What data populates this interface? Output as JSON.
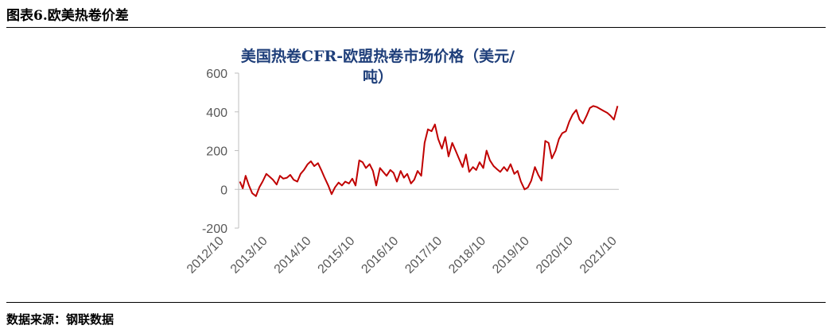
{
  "figure_title": "图表6.欧美热卷价差",
  "source": "数据来源：钢联数据",
  "chart_data": {
    "type": "line",
    "title_lines": [
      "美国热卷CFR-欧盟热卷市场价格（美元/",
      "吨）"
    ],
    "xlabel": "",
    "ylabel": "",
    "ylim": [
      -200,
      600
    ],
    "yticks": [
      "600",
      "400",
      "200",
      "0",
      "-200"
    ],
    "xticks": [
      "2012/10",
      "2013/10",
      "2014/10",
      "2015/10",
      "2016/10",
      "2017/10",
      "2018/10",
      "2019/10",
      "2020/10",
      "2021/10"
    ],
    "grid": false,
    "legend": "none",
    "series": [
      {
        "color": "#c00000",
        "x": [
          2012.78,
          2012.85,
          2012.92,
          2013.0,
          2013.08,
          2013.17,
          2013.25,
          2013.33,
          2013.42,
          2013.5,
          2013.58,
          2013.67,
          2013.75,
          2013.83,
          2013.92,
          2014.0,
          2014.08,
          2014.17,
          2014.25,
          2014.33,
          2014.42,
          2014.5,
          2014.58,
          2014.67,
          2014.75,
          2014.83,
          2014.92,
          2015.0,
          2015.08,
          2015.17,
          2015.25,
          2015.33,
          2015.42,
          2015.5,
          2015.58,
          2015.67,
          2015.75,
          2015.83,
          2015.92,
          2016.0,
          2016.08,
          2016.17,
          2016.25,
          2016.33,
          2016.42,
          2016.5,
          2016.58,
          2016.67,
          2016.75,
          2016.83,
          2016.92,
          2017.0,
          2017.08,
          2017.17,
          2017.25,
          2017.33,
          2017.42,
          2017.5,
          2017.58,
          2017.67,
          2017.75,
          2017.83,
          2017.92,
          2018.0,
          2018.08,
          2018.17,
          2018.25,
          2018.33,
          2018.42,
          2018.5,
          2018.58,
          2018.67,
          2018.75,
          2018.83,
          2018.92,
          2019.0,
          2019.08,
          2019.17,
          2019.25,
          2019.33,
          2019.42,
          2019.5,
          2019.58,
          2019.67,
          2019.75,
          2019.83,
          2019.92,
          2020.0,
          2020.08,
          2020.17,
          2020.25,
          2020.33,
          2020.42,
          2020.5,
          2020.58,
          2020.67,
          2020.75,
          2020.83,
          2020.92,
          2021.0,
          2021.08,
          2021.17,
          2021.25,
          2021.33,
          2021.42,
          2021.5,
          2021.58,
          2021.67,
          2021.75,
          2021.83,
          2021.92
        ],
        "values": [
          40,
          5,
          70,
          20,
          -20,
          -35,
          10,
          40,
          80,
          65,
          50,
          25,
          70,
          55,
          60,
          75,
          50,
          40,
          80,
          100,
          130,
          145,
          120,
          135,
          100,
          60,
          20,
          -25,
          10,
          35,
          20,
          40,
          30,
          55,
          20,
          150,
          140,
          110,
          130,
          95,
          20,
          110,
          90,
          70,
          100,
          85,
          40,
          95,
          60,
          80,
          30,
          50,
          95,
          70,
          240,
          310,
          300,
          335,
          260,
          210,
          270,
          170,
          240,
          200,
          160,
          115,
          180,
          90,
          115,
          100,
          140,
          110,
          200,
          150,
          120,
          105,
          90,
          115,
          95,
          130,
          80,
          95,
          40,
          0,
          10,
          45,
          115,
          75,
          45,
          250,
          240,
          160,
          200,
          260,
          290,
          300,
          350,
          385,
          410,
          360,
          340,
          380,
          420,
          430,
          425,
          415,
          405,
          395,
          380,
          360,
          430
        ]
      }
    ]
  }
}
